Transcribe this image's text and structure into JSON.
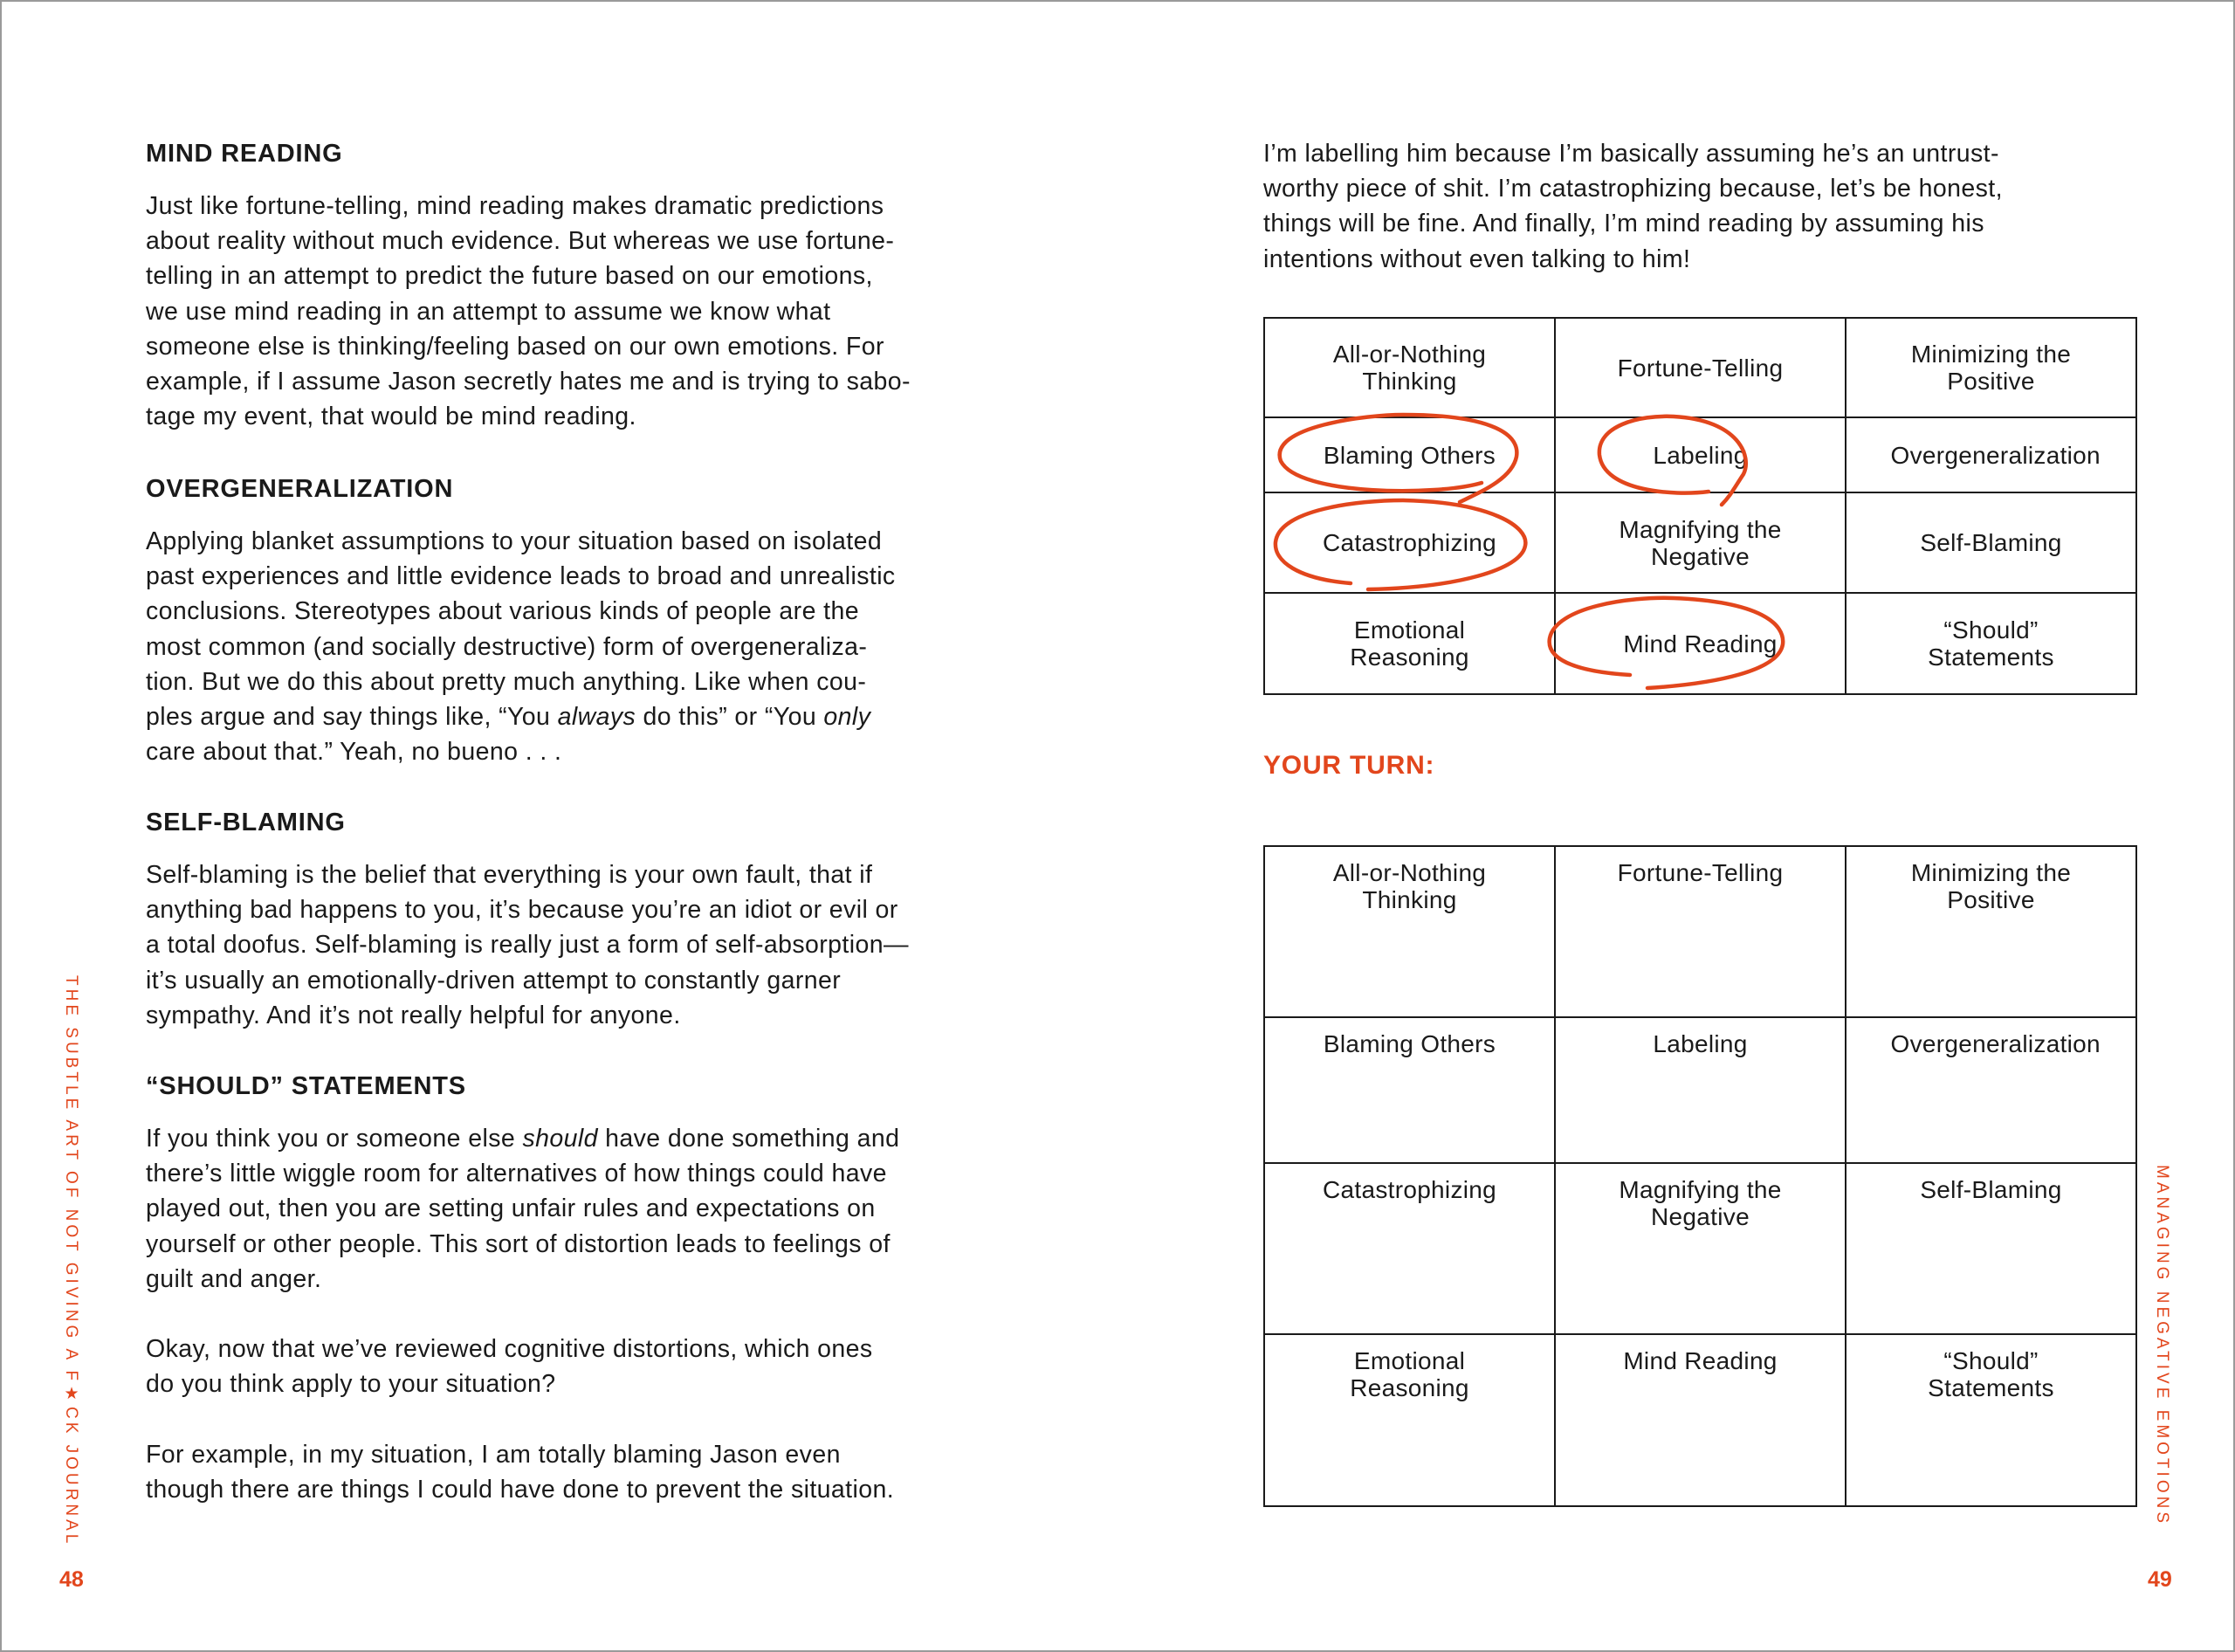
{
  "left": {
    "sections": [
      {
        "heading": "MIND READING",
        "lines": [
          "Just like fortune-telling, mind reading makes dramatic predictions",
          "about reality without much evidence. But whereas we use fortune-",
          "telling in an attempt to predict the future based on our emotions,",
          "we use mind reading in an attempt to assume we know what",
          "someone else is thinking/feeling based on our own emotions. For",
          "example, if I assume Jason secretly hates me and is trying to sabo-",
          "tage my event, that would be mind reading."
        ]
      },
      {
        "heading": "OVERGENERALIZATION",
        "lines": [
          "Applying blanket assumptions to your situation based on isolated",
          "past experiences and little evidence leads to broad and unrealistic",
          "conclusions. Stereotypes about various kinds of people are the",
          "most common (and socially destructive) form of overgeneraliza-",
          "tion. But we do this about pretty much anything. Like when cou-",
          [
            {
              "t": "ples argue and say things like, “You "
            },
            {
              "t": "always",
              "i": true
            },
            {
              "t": " do this” or “You "
            },
            {
              "t": "only",
              "i": true
            }
          ],
          "care about that.” Yeah, no bueno . . ."
        ]
      },
      {
        "heading": "SELF-BLAMING",
        "lines": [
          "Self-blaming is the belief that everything is your own fault, that if",
          "anything bad happens to you, it’s because you’re an idiot or evil or",
          "a total doofus. Self-blaming is really just a form of self-absorption—",
          "it’s usually an emotionally-driven attempt to constantly garner",
          "sympathy. And it’s not really helpful for anyone."
        ]
      },
      {
        "heading": "“SHOULD” STATEMENTS",
        "lines": [
          [
            {
              "t": "If you think you or someone else "
            },
            {
              "t": "should",
              "i": true
            },
            {
              "t": " have done something and"
            }
          ],
          "there’s little wiggle room for alternatives of how things could have",
          "played out, then you are setting unfair rules and expectations on",
          "yourself or other people. This sort of distortion leads to feelings of",
          "guilt and anger."
        ]
      },
      {
        "heading": "",
        "lines": [
          "Okay, now that we’ve reviewed cognitive distortions, which ones",
          "do you think apply to your situation?"
        ]
      },
      {
        "heading": "",
        "lines": [
          "For example, in my situation, I am totally blaming Jason even",
          "though there are things I could have done to prevent the situation."
        ]
      }
    ],
    "side_title": "THE SUBTLE ART OF NOT GIVING A F★CK JOURNAL",
    "page_number": "48"
  },
  "right": {
    "intro_lines": [
      "I’m labelling him because I’m basically assuming he’s an untrust-",
      "worthy piece of shit. I’m catastrophizing because, let’s be honest,",
      "things will be fine. And finally, I’m mind reading by assuming his",
      "intentions without even talking to him!"
    ],
    "example_table": [
      [
        "All-or-Nothing Thinking",
        "Fortune-Telling",
        "Minimizing the Positive"
      ],
      [
        "Blaming Others",
        "Labeling",
        "Overgeneralization"
      ],
      [
        "Catastrophizing",
        "Magnifying the Negative",
        "Self-Blaming"
      ],
      [
        "Emotional Reasoning",
        "Mind Reading",
        "“Should” Statements"
      ]
    ],
    "circled": [
      "Blaming Others",
      "Labeling",
      "Catastrophizing",
      "Mind Reading"
    ],
    "your_turn": "YOUR TURN:",
    "worksheet_table": [
      [
        "All-or-Nothing Thinking",
        "Fortune-Telling",
        "Minimizing the Positive"
      ],
      [
        "Blaming Others",
        "Labeling",
        "Overgeneralization"
      ],
      [
        "Catastrophizing",
        "Magnifying the Negative",
        "Self-Blaming"
      ],
      [
        "Emotional Reasoning",
        "Mind Reading",
        "“Should” Statements"
      ]
    ],
    "side_title": "MANAGING NEGATIVE EMOTIONS",
    "page_number": "49"
  },
  "colors": {
    "accent": "#e2461c",
    "text": "#1a1a1a"
  }
}
